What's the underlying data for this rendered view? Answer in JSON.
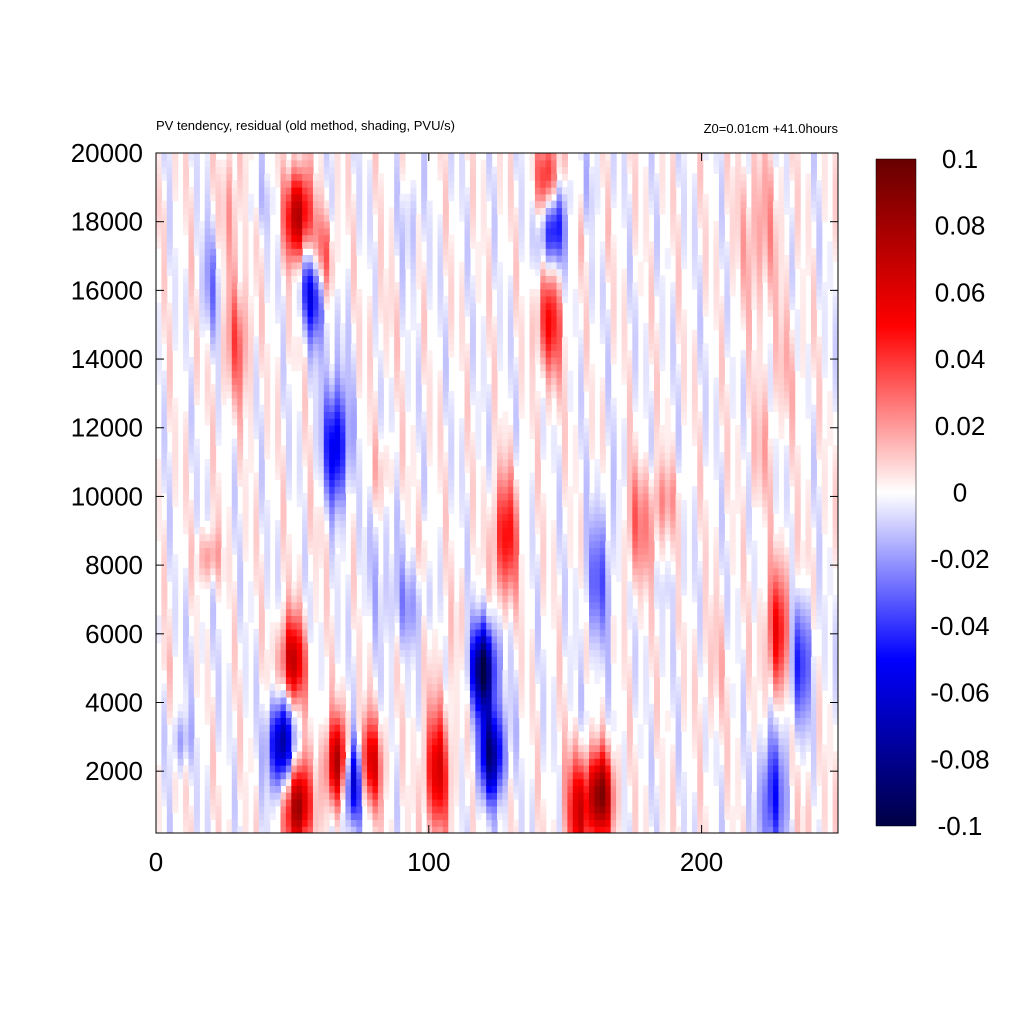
{
  "chart_data": {
    "type": "heatmap",
    "title": "PV tendency, residual (old method, shading, PVU/s)",
    "subtitle_right": "Z0=0.01cm   +41.0hours",
    "xlim": [
      0,
      250
    ],
    "ylim": [
      200,
      20000
    ],
    "x_ticks": [
      0,
      100,
      200
    ],
    "y_ticks": [
      2000,
      4000,
      6000,
      8000,
      10000,
      12000,
      14000,
      16000,
      18000,
      20000
    ],
    "x_tick_labels": [
      "0",
      "100",
      "200"
    ],
    "y_tick_labels": [
      "2000",
      "4000",
      "6000",
      "8000",
      "10000",
      "12000",
      "14000",
      "16000",
      "18000",
      "20000"
    ],
    "colorbar": {
      "range": [
        -0.1,
        0.1
      ],
      "tick_labels": [
        "0.1",
        "0.08",
        "0.06",
        "0.04",
        "0.02",
        "0",
        "-0.02",
        "-0.04",
        "-0.06",
        "-0.08",
        "-0.1"
      ],
      "tick_values": [
        0.1,
        0.08,
        0.06,
        0.04,
        0.02,
        0,
        -0.02,
        -0.04,
        -0.06,
        -0.08,
        -0.1
      ],
      "colors": [
        "#000044",
        "#0000ff",
        "#ffffff",
        "#ff0000",
        "#660000"
      ]
    },
    "features": [
      {
        "x": 52,
        "y": 1000,
        "value": 0.09
      },
      {
        "x": 46,
        "y": 2800,
        "value": -0.08
      },
      {
        "x": 50,
        "y": 5200,
        "value": 0.07
      },
      {
        "x": 58,
        "y": 16200,
        "value": -0.09
      },
      {
        "x": 52,
        "y": 18200,
        "value": 0.08
      },
      {
        "x": 60,
        "y": 16700,
        "value": 0.07
      },
      {
        "x": 66,
        "y": 11500,
        "value": -0.06
      },
      {
        "x": 72,
        "y": 1800,
        "value": -0.09
      },
      {
        "x": 67,
        "y": 2200,
        "value": 0.09
      },
      {
        "x": 78,
        "y": 2200,
        "value": 0.07
      },
      {
        "x": 103,
        "y": 2000,
        "value": 0.06
      },
      {
        "x": 120,
        "y": 5000,
        "value": -0.1
      },
      {
        "x": 123,
        "y": 2500,
        "value": -0.08
      },
      {
        "x": 128,
        "y": 8800,
        "value": 0.05
      },
      {
        "x": 144,
        "y": 19000,
        "value": 0.07
      },
      {
        "x": 145,
        "y": 18000,
        "value": -0.08
      },
      {
        "x": 144,
        "y": 15000,
        "value": 0.05
      },
      {
        "x": 163,
        "y": 1300,
        "value": 0.09
      },
      {
        "x": 155,
        "y": 900,
        "value": 0.06
      },
      {
        "x": 228,
        "y": 6000,
        "value": 0.05
      },
      {
        "x": 236,
        "y": 5200,
        "value": -0.04
      },
      {
        "x": 226,
        "y": 1200,
        "value": -0.05
      },
      {
        "x": 30,
        "y": 14500,
        "value": 0.03
      },
      {
        "x": 20,
        "y": 16000,
        "value": -0.03
      },
      {
        "x": 175,
        "y": 9200,
        "value": 0.03
      },
      {
        "x": 162,
        "y": 7500,
        "value": -0.03
      }
    ]
  }
}
